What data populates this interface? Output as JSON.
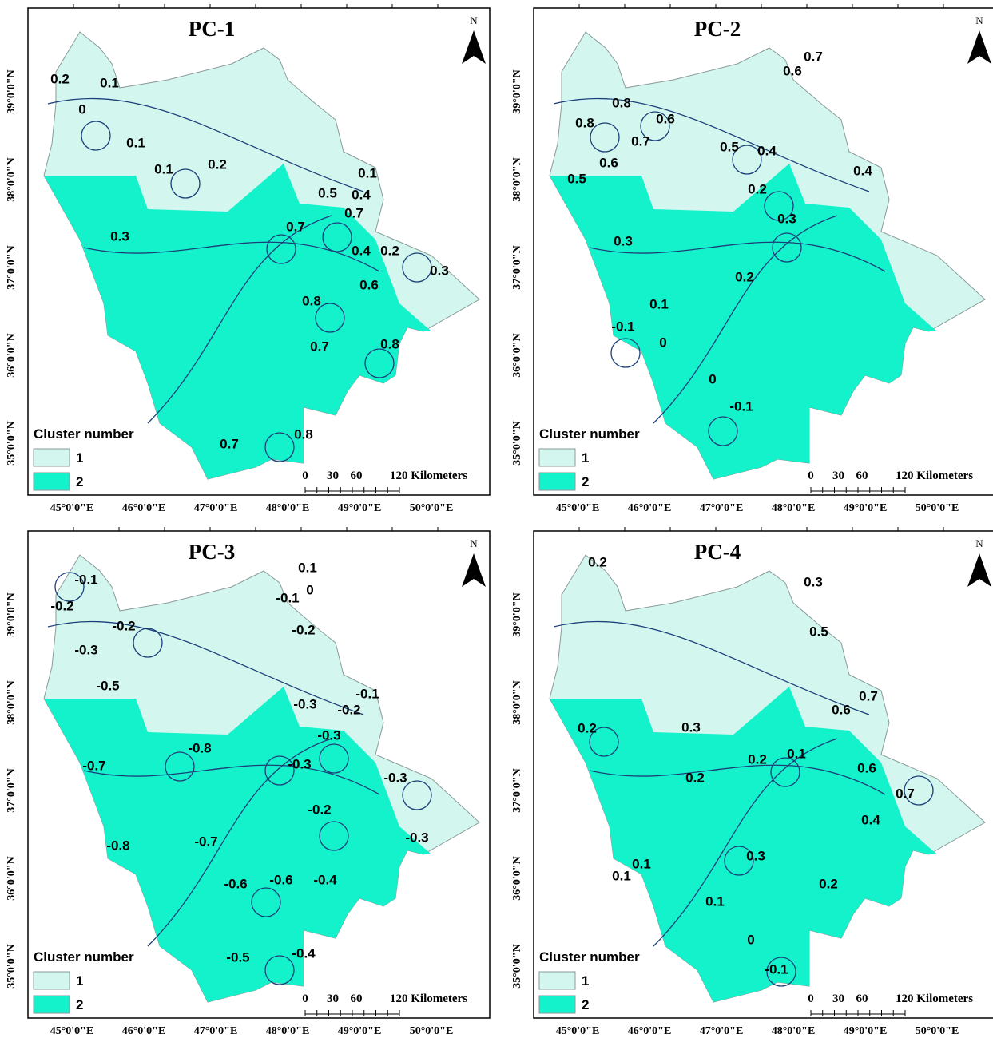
{
  "axes": {
    "longitude": [
      "45°0'0\"E",
      "46°0'0\"E",
      "47°0'0\"E",
      "48°0'0\"E",
      "49°0'0\"E",
      "50°0'0\"E"
    ],
    "latitude": [
      "39°0'0\"N",
      "38°0'0\"N",
      "37°0'0\"N",
      "36°0'0\"N",
      "35°0'0\"N"
    ]
  },
  "legend": {
    "title": "Cluster number",
    "items": [
      "1",
      "2"
    ]
  },
  "scale_bar": {
    "ticks": [
      "0",
      "30",
      "60"
    ],
    "end_label": "120 Kilometers"
  },
  "north": "N",
  "panels": [
    {
      "title": "PC-1",
      "contour_labels": [
        "0.2",
        "0.1",
        "0",
        "0.1",
        "0.1",
        "0.2",
        "0.1",
        "0.5",
        "0.4",
        "0.3",
        "0.7",
        "0.7",
        "0.4",
        "0.2",
        "0.3",
        "0.6",
        "0.8",
        "0.7",
        "0.8",
        "0.7",
        "0.8"
      ]
    },
    {
      "title": "PC-2",
      "contour_labels": [
        "0.7",
        "0.6",
        "0.8",
        "0.8",
        "0.6",
        "0.7",
        "0.5",
        "0.4",
        "0.6",
        "0.5",
        "0.4",
        "0.2",
        "0.3",
        "0.3",
        "0.2",
        "0.1",
        "-0.1",
        "0",
        "0",
        "-0.1"
      ]
    },
    {
      "title": "PC-3",
      "contour_labels": [
        "-0.1",
        "-0.2",
        "-0.2",
        "-0.3",
        "0.1",
        "0",
        "-0.1",
        "-0.2",
        "-0.5",
        "-0.1",
        "-0.3",
        "-0.2",
        "-0.3",
        "-0.8",
        "-0.3",
        "-0.7",
        "-0.3",
        "-0.2",
        "-0.3",
        "-0.8",
        "-0.7",
        "-0.4",
        "-0.6",
        "-0.6",
        "-0.5",
        "-0.4"
      ]
    },
    {
      "title": "PC-4",
      "contour_labels": [
        "0.2",
        "0.3",
        "0.5",
        "0.6",
        "0.7",
        "0.3",
        "0.2",
        "0.2",
        "0.1",
        "0.2",
        "0.6",
        "0.7",
        "0.4",
        "0.1",
        "0.3",
        "0.1",
        "0.2",
        "0.1",
        "0",
        "-0.1"
      ]
    }
  ]
}
